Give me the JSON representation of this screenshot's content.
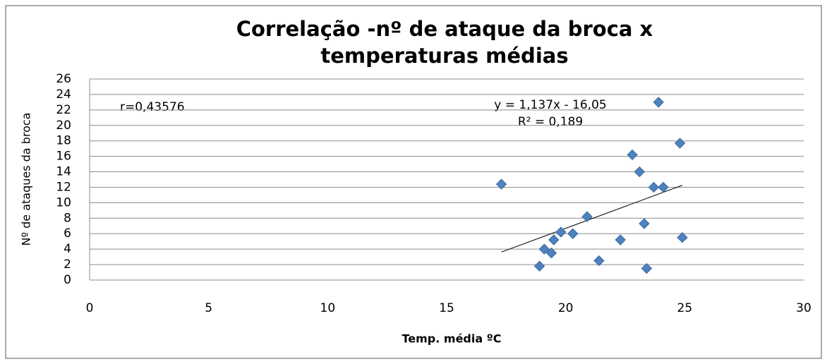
{
  "chart_data": {
    "type": "scatter",
    "title": "Correlação -nº de ataque da broca x temperaturas médias",
    "x_label": "Temp. média ºC",
    "y_label": "Nº de ataques da broca",
    "annotation": "r=0,43576",
    "trendline": {
      "equation": "y = 1,137x - 16,05",
      "r2_label": "R² = 0,189",
      "slope": 1.137,
      "intercept": -16.05
    },
    "color": "#4f81bd",
    "x": [
      17.3,
      18.9,
      19.1,
      19.4,
      19.5,
      19.8,
      20.3,
      20.9,
      21.4,
      22.3,
      22.8,
      23.1,
      23.3,
      23.4,
      23.7,
      23.9,
      24.1,
      24.8,
      24.9
    ],
    "values": [
      12.4,
      1.8,
      4.0,
      3.5,
      5.2,
      6.2,
      6.0,
      8.2,
      2.5,
      5.2,
      16.2,
      14,
      7.3,
      1.5,
      12,
      23,
      12,
      17.7,
      5.5
    ],
    "xlim": [
      0,
      30
    ],
    "xticks": [
      0,
      5,
      10,
      15,
      20,
      25,
      30
    ],
    "ylim": [
      0,
      26
    ],
    "yticks": [
      0,
      2,
      4,
      6,
      8,
      10,
      12,
      14,
      16,
      18,
      20,
      22,
      24,
      26
    ],
    "grid": true
  }
}
